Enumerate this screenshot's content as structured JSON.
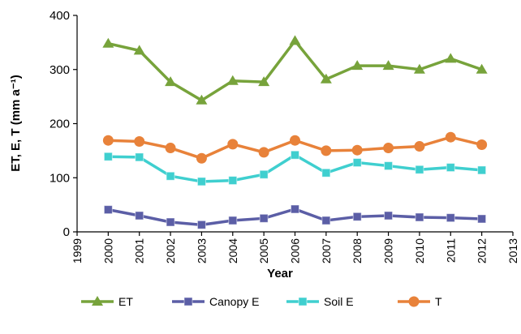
{
  "chart_data": {
    "type": "line",
    "x_label": "Year",
    "y_label": "ET, E, T (mm a⁻¹)",
    "x": [
      2000,
      2001,
      2002,
      2003,
      2004,
      2005,
      2006,
      2007,
      2008,
      2009,
      2010,
      2011,
      2012
    ],
    "xlim": [
      1999,
      2013
    ],
    "xticks": [
      1999,
      2000,
      2001,
      2002,
      2003,
      2004,
      2005,
      2006,
      2007,
      2008,
      2009,
      2010,
      2011,
      2012,
      2013
    ],
    "ylim": [
      0,
      400
    ],
    "yticks": [
      0,
      100,
      200,
      300,
      400
    ],
    "grid": false,
    "legend": "bottom",
    "series": [
      {
        "name": "ET",
        "color": "#77a33b",
        "marker": "triangle",
        "values": [
          348,
          335,
          277,
          243,
          279,
          277,
          353,
          282,
          307,
          307,
          300,
          320,
          300
        ]
      },
      {
        "name": "Canopy E",
        "color": "#5b5ea6",
        "marker": "square",
        "values": [
          41,
          30,
          18,
          13,
          21,
          25,
          42,
          21,
          28,
          30,
          27,
          26,
          24
        ]
      },
      {
        "name": "Soil E",
        "color": "#3fcfcf",
        "marker": "square",
        "values": [
          139,
          138,
          103,
          93,
          95,
          106,
          142,
          109,
          128,
          122,
          115,
          119,
          114
        ]
      },
      {
        "name": "T",
        "color": "#e8823a",
        "marker": "circle",
        "values": [
          169,
          167,
          155,
          136,
          162,
          147,
          169,
          150,
          151,
          155,
          158,
          175,
          161
        ]
      }
    ]
  }
}
